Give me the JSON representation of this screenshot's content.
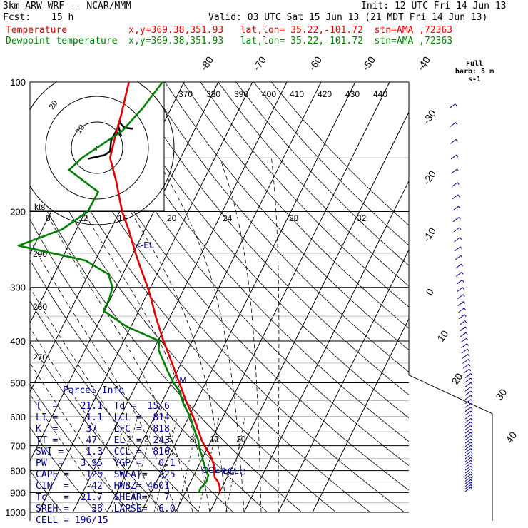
{
  "header": {
    "model": "3km ARW-WRF -- NCAR/MMM",
    "init": "Init: 12 UTC Fri 14 Jun 13",
    "fcst_label": "Fcst:",
    "fcst_value": "15 h",
    "valid": "Valid: 03 UTC Sat 15 Jun 13 (21 MDT Fri 14 Jun 13)",
    "temp_line": "Temperature           x,y=369.38,351.93   lat,lon= 35.22,-101.72  stn=AMA ,72363",
    "dew_line": "Dewpoint temperature  x,y=369.38,351.93   lat,lon= 35.22,-101.72  stn=AMA ,72363"
  },
  "colors": {
    "temperature": "#e00000",
    "dewpoint": "#008000",
    "annotations": "#00008b",
    "grid": "#000000"
  },
  "barb_label": "Full barb: 5 m s-1",
  "chart_data": {
    "type": "line",
    "y_axis": "pressure (hPa, log scale)",
    "pressure_levels": [
      100,
      200,
      300,
      400,
      500,
      600,
      700,
      800,
      900,
      1000
    ],
    "isotherm_labels": [
      -80,
      -70,
      -60,
      -50,
      -40,
      -30,
      -20,
      -10,
      0,
      10,
      20,
      30,
      40
    ],
    "potential_temperature_labels": [
      370,
      380,
      390,
      400,
      410,
      420,
      430,
      440
    ],
    "mixing_ratio_labels": [
      2,
      3,
      5,
      8,
      12,
      20
    ],
    "hodograph": {
      "speed_ring_labels": [
        8,
        12,
        16,
        20,
        24,
        28,
        32
      ],
      "ring_annotations": [
        "10",
        "20",
        "270",
        "280",
        "290"
      ],
      "units": "kts",
      "points_uv": [
        [
          -2.5,
          -3
        ],
        [
          2,
          -2.0
        ],
        [
          3.5,
          -1.0
        ],
        [
          3.8,
          2.0
        ],
        [
          5.0,
          4.2
        ],
        [
          6.4,
          3.5
        ],
        [
          5.7,
          6.0
        ],
        [
          6.4,
          7.4
        ],
        [
          5.9,
          7.0
        ],
        [
          7.4,
          5.4
        ],
        [
          9.6,
          5.1
        ]
      ]
    },
    "series": [
      {
        "name": "Temperature",
        "points": [
          [
            900,
            20.1
          ],
          [
            870,
            19.1
          ],
          [
            850,
            18.0
          ],
          [
            830,
            16.4
          ],
          [
            800,
            15.2
          ],
          [
            780,
            14.5
          ],
          [
            750,
            12.8
          ],
          [
            730,
            11.3
          ],
          [
            700,
            8.8
          ],
          [
            680,
            7.2
          ],
          [
            650,
            5.1
          ],
          [
            600,
            1.3
          ],
          [
            550,
            -3.2
          ],
          [
            500,
            -7.7
          ],
          [
            450,
            -12.7
          ],
          [
            420,
            -16.0
          ],
          [
            400,
            -18.4
          ],
          [
            350,
            -24.3
          ],
          [
            320,
            -28.0
          ],
          [
            300,
            -30.8
          ],
          [
            270,
            -35.8
          ],
          [
            250,
            -39.3
          ],
          [
            220,
            -44.8
          ],
          [
            200,
            -49.3
          ],
          [
            170,
            -55.4
          ],
          [
            150,
            -60.6
          ],
          [
            130,
            -62.6
          ],
          [
            120,
            -63.5
          ],
          [
            100,
            -66.1
          ]
        ]
      },
      {
        "name": "Dewpoint temperature",
        "points": [
          [
            900,
            14.0
          ],
          [
            880,
            13.8
          ],
          [
            850,
            14.6
          ],
          [
            820,
            14.2
          ],
          [
            800,
            12.8
          ],
          [
            780,
            11.8
          ],
          [
            760,
            10.6
          ],
          [
            740,
            9.6
          ],
          [
            720,
            8.3
          ],
          [
            700,
            7.1
          ],
          [
            680,
            6.2
          ],
          [
            650,
            4.0
          ],
          [
            600,
            0.4
          ],
          [
            560,
            -3.4
          ],
          [
            520,
            -6.8
          ],
          [
            500,
            -9.4
          ],
          [
            470,
            -12.8
          ],
          [
            440,
            -16.1
          ],
          [
            420,
            -18.5
          ],
          [
            400,
            -19.6
          ],
          [
            370,
            -31.3
          ],
          [
            340,
            -40.3
          ],
          [
            320,
            -40.3
          ],
          [
            300,
            -41.1
          ],
          [
            280,
            -44.1
          ],
          [
            260,
            -52.8
          ],
          [
            240,
            -74.6
          ],
          [
            220,
            -64.2
          ],
          [
            200,
            -59.3
          ],
          [
            180,
            -59.1
          ],
          [
            160,
            -70.8
          ],
          [
            150,
            -68.8
          ],
          [
            130,
            -61.0
          ],
          [
            115,
            -58.3
          ],
          [
            100,
            -56.3
          ]
        ]
      }
    ],
    "annotations": [
      {
        "label": "<-EL",
        "p": 243,
        "t": -40
      },
      {
        "label": "M",
        "p": 500,
        "t": -7.7
      },
      {
        "label": "CCL->",
        "p": 810,
        "t": 12
      },
      {
        "label": "<-LCL",
        "p": 814,
        "t": 16.0
      },
      {
        "label": "<-LFC",
        "p": 818,
        "t": 18.0
      }
    ]
  },
  "parcel_info": {
    "title": "Parcel Info",
    "rows": [
      "T  =    21.1  Td =  15.6",
      "LI =    -1.1  LCL =  814.",
      "K  =     37   LFC =  818.",
      "TT =     47   EL  =  243.",
      "SWI =   -1.3  CCL =  810.",
      "PW  =   3.95  YGP =   0.1",
      "CAPE =   125  SWEAT=  225",
      "CIN  =   -42  HWBZ= 4601.",
      "Tc   =  21.7  SHEAR=   7.",
      "SREH =    38  LAPSE=  6.0",
      "CELL = 196/15"
    ]
  }
}
